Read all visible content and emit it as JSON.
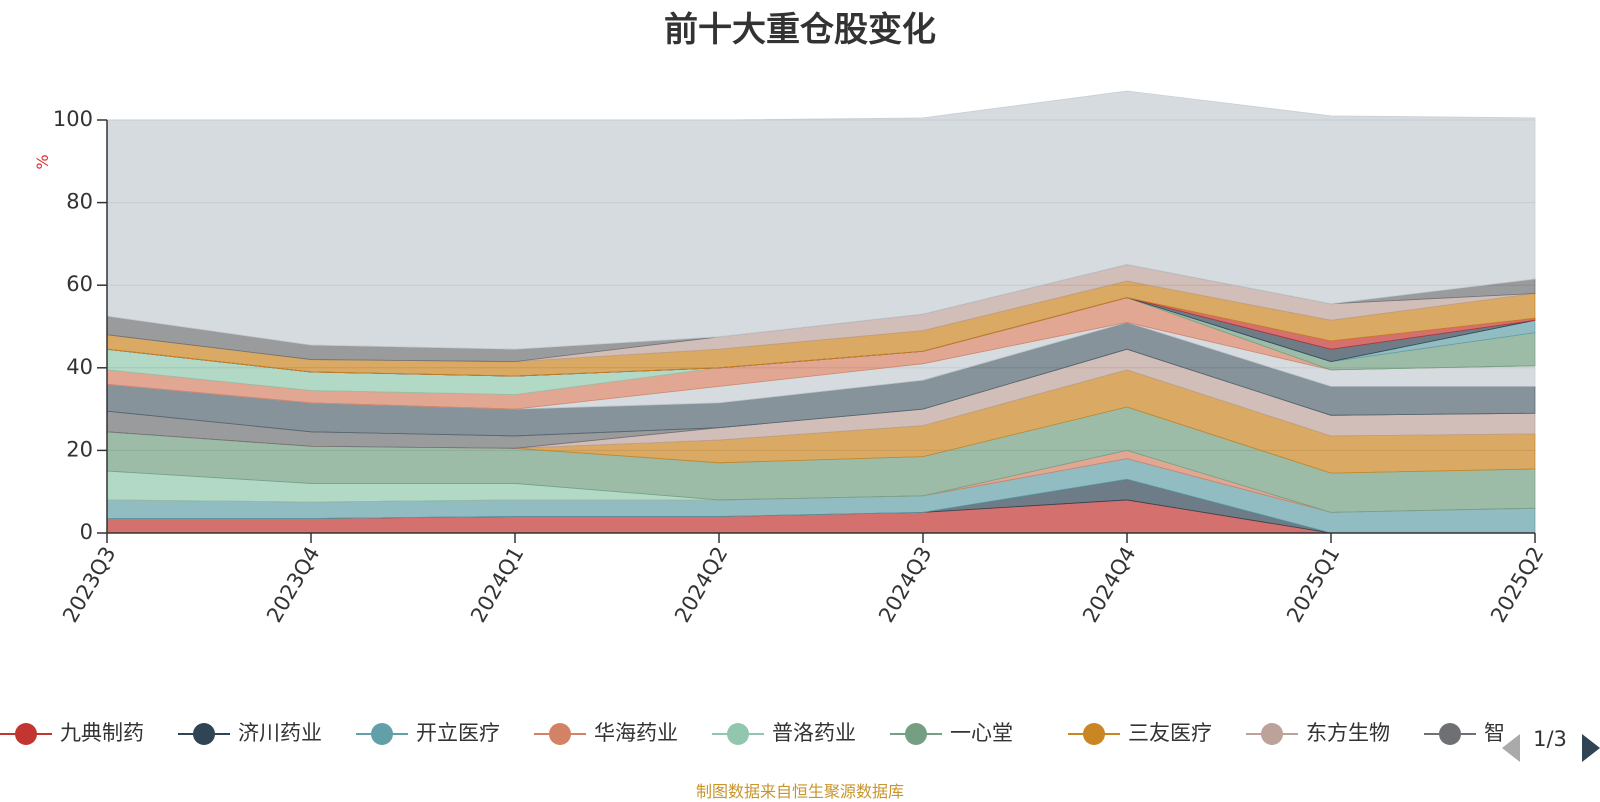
{
  "chart_data": {
    "type": "area",
    "title": "前十大重仓股变化",
    "ylabel": "%",
    "ylim": [
      0,
      100
    ],
    "yticks": [
      0,
      20,
      40,
      60,
      80,
      100
    ],
    "grid": true,
    "categories": [
      "2023Q3",
      "2023Q4",
      "2024Q1",
      "2024Q2",
      "2024Q3",
      "2024Q4",
      "2025Q1",
      "2025Q2"
    ],
    "series": [
      {
        "name": "九典制药",
        "color": "#c23531",
        "values": [
          3.5,
          3.5,
          4.0,
          4.0,
          5.0,
          8.0,
          0.0,
          0.0
        ]
      },
      {
        "name": "济川药业",
        "color": "#2f4554",
        "values": [
          0.0,
          0.0,
          0.0,
          0.0,
          0.0,
          5.0,
          0.0,
          0.0
        ]
      },
      {
        "name": "开立医疗",
        "color": "#61a0a8",
        "values": [
          4.5,
          4.0,
          4.0,
          4.0,
          4.0,
          5.0,
          5.0,
          6.0
        ]
      },
      {
        "name": "华海药业",
        "color": "#d48265",
        "values": [
          0.0,
          0.0,
          0.0,
          0.0,
          0.0,
          2.0,
          0.0,
          0.0
        ]
      },
      {
        "name": "普洛药业",
        "color": "#91c7ae",
        "values": [
          7.0,
          4.5,
          4.0,
          0.0,
          0.0,
          0.0,
          0.0,
          0.0
        ]
      },
      {
        "name": "一心堂",
        "color": "#749f83",
        "values": [
          9.5,
          9.0,
          8.5,
          9.0,
          9.5,
          10.5,
          9.5,
          9.5
        ]
      },
      {
        "name": "三友医疗",
        "color": "#ca8622",
        "values": [
          0.0,
          0.0,
          0.0,
          5.5,
          7.5,
          9.0,
          9.0,
          8.5
        ]
      },
      {
        "name": "东方生物",
        "color": "#bda29a",
        "values": [
          0.0,
          0.0,
          0.0,
          3.0,
          4.0,
          5.0,
          5.0,
          5.0
        ]
      },
      {
        "name": "智",
        "color": "#6e7074",
        "values": [
          5.0,
          3.5,
          3.0,
          0.0,
          0.0,
          0.0,
          0.0,
          0.0
        ]
      },
      {
        "name": "",
        "color": "#546570",
        "values": [
          6.5,
          7.0,
          6.5,
          6.0,
          7.0,
          6.5,
          7.0,
          6.5
        ]
      },
      {
        "name": "",
        "color": "#c4ccd3",
        "values": [
          0.0,
          0.0,
          0.0,
          4.0,
          4.0,
          0.0,
          4.0,
          5.0
        ]
      },
      {
        "name": "",
        "color": "#d48265",
        "values": [
          3.5,
          3.0,
          3.5,
          4.5,
          3.0,
          6.0,
          0.0,
          0.0
        ]
      },
      {
        "name": "",
        "color": "#91c7ae",
        "values": [
          5.0,
          4.5,
          4.5,
          0.0,
          0.0,
          0.0,
          0.0,
          0.0
        ]
      },
      {
        "name": "",
        "color": "#749f83",
        "values": [
          0.0,
          0.0,
          0.0,
          0.0,
          0.0,
          0.0,
          2.0,
          8.0
        ]
      },
      {
        "name": "",
        "color": "#61a0a8",
        "values": [
          0.0,
          0.0,
          0.0,
          0.0,
          0.0,
          0.0,
          0.0,
          3.0
        ]
      },
      {
        "name": "",
        "color": "#2f4554",
        "values": [
          0.0,
          0.0,
          0.0,
          0.0,
          0.0,
          0.0,
          3.0,
          0.0
        ]
      },
      {
        "name": "",
        "color": "#c23531",
        "values": [
          0.0,
          0.0,
          0.0,
          0.0,
          0.0,
          0.0,
          2.0,
          0.5
        ]
      },
      {
        "name": "",
        "color": "#ca8622",
        "values": [
          3.5,
          3.0,
          3.5,
          4.5,
          5.0,
          4.0,
          5.0,
          6.0
        ]
      },
      {
        "name": "",
        "color": "#bda29a",
        "values": [
          0.0,
          0.0,
          0.0,
          3.0,
          4.0,
          4.0,
          4.0,
          0.0
        ]
      },
      {
        "name": "",
        "color": "#6e7074",
        "values": [
          4.5,
          3.5,
          3.0,
          0.0,
          0.0,
          0.0,
          0.0,
          3.5
        ]
      },
      {
        "name": "",
        "color": "#c4ccd3",
        "values": [
          47.5,
          54.5,
          55.5,
          52.5,
          47.5,
          42.0,
          45.5,
          39.0
        ]
      }
    ]
  },
  "legend": {
    "pager": "1/3",
    "prev_icon": "triangle-left-icon",
    "next_icon": "triangle-right-icon"
  },
  "source_note": "制图数据来自恒生聚源数据库"
}
